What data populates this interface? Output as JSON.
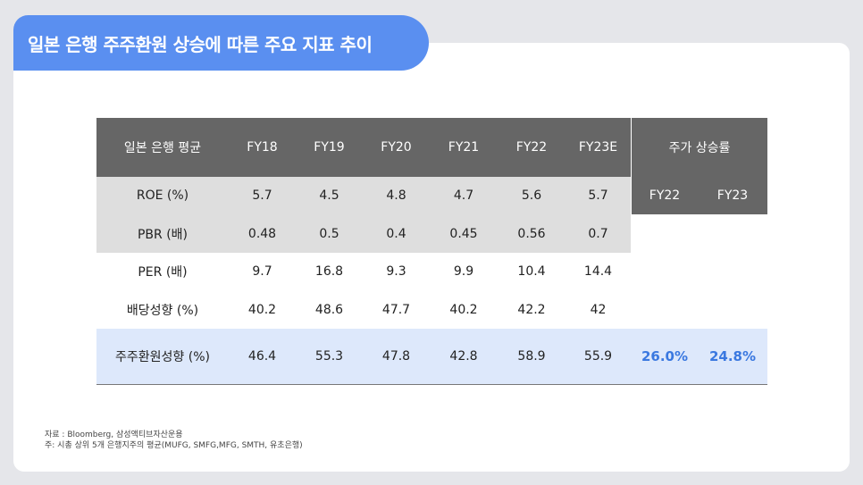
{
  "title": "일본 은행 주주환원 상승에 따른 주요 지표 추이",
  "table": {
    "header": {
      "label": "일본 은행 평균",
      "years": [
        "FY18",
        "FY19",
        "FY20",
        "FY21",
        "FY22",
        "FY23E"
      ],
      "stock_rise": "주가 상승률",
      "stock_years": [
        "FY22",
        "FY23"
      ]
    },
    "rows": [
      {
        "label": "ROE (%)",
        "values": [
          "5.7",
          "4.5",
          "4.8",
          "4.7",
          "5.6",
          "5.7"
        ]
      },
      {
        "label": "PBR (배)",
        "values": [
          "0.48",
          "0.5",
          "0.4",
          "0.45",
          "0.56",
          "0.7"
        ]
      },
      {
        "label": "PER (배)",
        "values": [
          "9.7",
          "16.8",
          "9.3",
          "9.9",
          "10.4",
          "14.4"
        ]
      },
      {
        "label": "배당성향 (%)",
        "values": [
          "40.2",
          "48.6",
          "47.7",
          "40.2",
          "42.2",
          "42"
        ]
      },
      {
        "label": "주주환원성향 (%)",
        "values": [
          "46.4",
          "55.3",
          "47.8",
          "42.8",
          "58.9",
          "55.9"
        ]
      }
    ],
    "stock_values": [
      "26.0%",
      "24.8%"
    ]
  },
  "notes": {
    "source": "자료 : Bloomberg, 삼성액티브자산운용",
    "note": "주: 시총 상위 5개 은행지주의 평균(MUFG, SMFG,MFG, SMTH, 유초은행)"
  },
  "colors": {
    "title_bg": "#5a8ff0",
    "header_bg": "#666666",
    "grey_row": "#dedede",
    "blue_row": "#dde8fb",
    "accent": "#3a78e0"
  }
}
